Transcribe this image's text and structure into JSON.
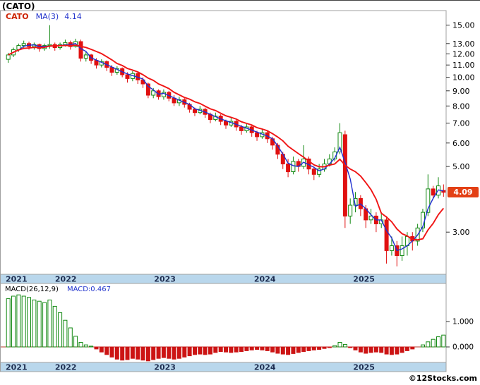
{
  "title": "(CATO)",
  "credit": "©12Stocks.com",
  "last_price": "4.09",
  "main_legend": {
    "symbol": "CATO",
    "ma_label": "MA(3)",
    "ma_value": "4.14"
  },
  "macd_legend": {
    "label": "MACD(26,12,9)",
    "value": "MACD:0.467"
  },
  "colors": {
    "up": "#128912",
    "down": "#e01010",
    "ma_fast": "#2030d0",
    "ma_slow": "#f01414",
    "macd_up": "#128912",
    "macd_down": "#cc1414",
    "macd_zero_line": "#b23c2e",
    "band": "#b9d7ec",
    "year_text": "#1d2d50",
    "badge_bg": "#e34015",
    "legend_symbol": "#cc2200",
    "legend_value": "#2233cc",
    "panel_border": "#a0a0a0",
    "tick_text": "#000000"
  },
  "chart_data": {
    "type": "candlestick_with_macd",
    "title": "(CATO)",
    "legend": "CATO MA(3) 4.14",
    "price_axis": {
      "scale": "log",
      "tick_values": [
        15,
        13,
        12,
        11,
        10,
        9,
        8,
        7,
        6,
        5,
        3
      ],
      "tick_labels": [
        "15.00",
        "13.00",
        "12.00",
        "11.00",
        "10.00",
        "9.00",
        "8.00",
        "7.00",
        "6.00",
        "5.00",
        "3.00"
      ],
      "last_close": 4.09
    },
    "x_axis": {
      "years": [
        "2021",
        "2022",
        "2023",
        "2024",
        "2025"
      ],
      "fractions": [
        0.0,
        0.112,
        0.337,
        0.564,
        0.789
      ]
    },
    "ma_fast_window": 3,
    "ma_fast_value": 4.14,
    "ma_slow_window": 8,
    "candles": [
      [
        11.5,
        12.1,
        11.2,
        11.9
      ],
      [
        11.9,
        12.6,
        11.7,
        12.4
      ],
      [
        12.4,
        13.0,
        12.2,
        12.8
      ],
      [
        12.8,
        13.3,
        12.5,
        13.0
      ],
      [
        13.0,
        13.2,
        12.4,
        12.7
      ],
      [
        12.7,
        13.1,
        12.4,
        12.9
      ],
      [
        12.9,
        13.0,
        12.2,
        12.5
      ],
      [
        12.5,
        13.0,
        12.3,
        12.8
      ],
      [
        12.8,
        15.0,
        12.5,
        12.9
      ],
      [
        12.9,
        13.1,
        12.3,
        12.6
      ],
      [
        12.6,
        13.1,
        12.4,
        12.9
      ],
      [
        12.9,
        13.4,
        12.7,
        13.1
      ],
      [
        13.1,
        13.3,
        12.4,
        12.7
      ],
      [
        12.7,
        13.5,
        12.6,
        13.2
      ],
      [
        13.2,
        13.4,
        11.3,
        11.6
      ],
      [
        11.6,
        12.2,
        11.3,
        11.9
      ],
      [
        11.9,
        12.0,
        11.1,
        11.4
      ],
      [
        11.4,
        11.6,
        10.7,
        11.0
      ],
      [
        11.0,
        11.5,
        10.8,
        11.3
      ],
      [
        11.3,
        11.4,
        10.5,
        10.8
      ],
      [
        10.8,
        11.0,
        10.1,
        10.4
      ],
      [
        10.4,
        10.9,
        10.2,
        10.7
      ],
      [
        10.7,
        10.8,
        10.0,
        10.2
      ],
      [
        10.2,
        10.4,
        9.6,
        9.9
      ],
      [
        9.9,
        10.5,
        9.7,
        10.3
      ],
      [
        10.3,
        10.4,
        9.5,
        9.8
      ],
      [
        9.8,
        10.0,
        9.2,
        9.5
      ],
      [
        9.5,
        9.6,
        8.5,
        8.7
      ],
      [
        8.7,
        9.2,
        8.5,
        9.0
      ],
      [
        9.0,
        9.1,
        8.4,
        8.6
      ],
      [
        8.6,
        9.1,
        8.4,
        8.9
      ],
      [
        8.9,
        9.0,
        8.3,
        8.5
      ],
      [
        8.5,
        8.7,
        8.0,
        8.2
      ],
      [
        8.2,
        8.6,
        8.0,
        8.4
      ],
      [
        8.4,
        8.5,
        7.9,
        8.1
      ],
      [
        8.1,
        8.2,
        7.6,
        7.8
      ],
      [
        7.8,
        7.9,
        7.4,
        7.6
      ],
      [
        7.6,
        8.0,
        7.5,
        7.8
      ],
      [
        7.8,
        7.9,
        7.3,
        7.5
      ],
      [
        7.5,
        7.6,
        7.0,
        7.2
      ],
      [
        7.2,
        7.6,
        7.1,
        7.4
      ],
      [
        7.4,
        7.5,
        6.9,
        7.1
      ],
      [
        7.1,
        7.2,
        6.7,
        6.9
      ],
      [
        6.9,
        7.3,
        6.8,
        7.1
      ],
      [
        7.1,
        7.2,
        6.6,
        6.8
      ],
      [
        6.8,
        6.9,
        6.4,
        6.6
      ],
      [
        6.6,
        7.0,
        6.5,
        6.8
      ],
      [
        6.8,
        6.9,
        6.3,
        6.5
      ],
      [
        6.5,
        6.6,
        6.1,
        6.3
      ],
      [
        6.3,
        6.7,
        6.2,
        6.5
      ],
      [
        6.5,
        6.6,
        6.0,
        6.2
      ],
      [
        6.2,
        6.3,
        5.7,
        5.9
      ],
      [
        5.9,
        6.0,
        5.3,
        5.5
      ],
      [
        5.5,
        5.6,
        4.9,
        5.1
      ],
      [
        5.1,
        5.3,
        4.6,
        4.8
      ],
      [
        4.8,
        5.4,
        4.7,
        5.2
      ],
      [
        5.2,
        5.3,
        4.8,
        5.0
      ],
      [
        5.0,
        5.9,
        4.9,
        5.3
      ],
      [
        5.3,
        5.4,
        4.7,
        4.9
      ],
      [
        4.9,
        5.0,
        4.5,
        4.7
      ],
      [
        4.7,
        5.1,
        4.6,
        4.9
      ],
      [
        4.9,
        5.3,
        4.8,
        5.1
      ],
      [
        5.1,
        5.5,
        5.0,
        5.3
      ],
      [
        5.3,
        5.8,
        5.2,
        5.6
      ],
      [
        5.6,
        7.0,
        5.5,
        6.5
      ],
      [
        6.4,
        6.6,
        3.1,
        3.4
      ],
      [
        3.4,
        3.9,
        3.2,
        3.7
      ],
      [
        3.7,
        4.1,
        3.5,
        3.9
      ],
      [
        3.9,
        4.0,
        3.4,
        3.6
      ],
      [
        3.6,
        3.7,
        3.1,
        3.3
      ],
      [
        3.3,
        3.6,
        3.2,
        3.4
      ],
      [
        3.4,
        3.5,
        3.0,
        3.2
      ],
      [
        3.2,
        3.5,
        3.1,
        3.3
      ],
      [
        3.3,
        3.4,
        2.35,
        2.6
      ],
      [
        2.6,
        2.9,
        2.5,
        2.7
      ],
      [
        2.7,
        2.8,
        2.3,
        2.5
      ],
      [
        2.5,
        2.9,
        2.4,
        2.7
      ],
      [
        2.7,
        3.0,
        2.5,
        2.9
      ],
      [
        2.9,
        3.0,
        2.6,
        2.8
      ],
      [
        2.8,
        3.2,
        2.7,
        3.1
      ],
      [
        3.1,
        3.6,
        3.0,
        3.5
      ],
      [
        3.5,
        4.7,
        3.4,
        4.2
      ],
      [
        4.2,
        4.3,
        3.9,
        4.0
      ],
      [
        4.0,
        4.6,
        3.9,
        4.3
      ],
      [
        4.15,
        4.35,
        3.95,
        4.09
      ]
    ],
    "macd": {
      "params": "(26,12,9)",
      "last": 0.467,
      "tick_values": [
        1,
        0
      ],
      "tick_labels": [
        "1.000",
        "0.000"
      ],
      "values": [
        1.9,
        2.0,
        2.05,
        2.0,
        1.95,
        1.85,
        1.8,
        1.75,
        1.85,
        1.6,
        1.35,
        1.05,
        0.75,
        0.42,
        0.18,
        0.08,
        0.03,
        -0.08,
        -0.2,
        -0.3,
        -0.4,
        -0.48,
        -0.52,
        -0.5,
        -0.45,
        -0.48,
        -0.52,
        -0.55,
        -0.5,
        -0.45,
        -0.42,
        -0.45,
        -0.48,
        -0.45,
        -0.4,
        -0.35,
        -0.3,
        -0.28,
        -0.3,
        -0.28,
        -0.22,
        -0.18,
        -0.2,
        -0.22,
        -0.2,
        -0.18,
        -0.15,
        -0.12,
        -0.1,
        -0.12,
        -0.15,
        -0.2,
        -0.25,
        -0.28,
        -0.3,
        -0.26,
        -0.22,
        -0.18,
        -0.15,
        -0.12,
        -0.1,
        -0.06,
        -0.02,
        0.05,
        0.18,
        0.1,
        -0.02,
        -0.12,
        -0.2,
        -0.25,
        -0.22,
        -0.2,
        -0.22,
        -0.28,
        -0.3,
        -0.28,
        -0.22,
        -0.15,
        -0.08,
        0.0,
        0.08,
        0.2,
        0.3,
        0.4,
        0.467
      ]
    }
  }
}
